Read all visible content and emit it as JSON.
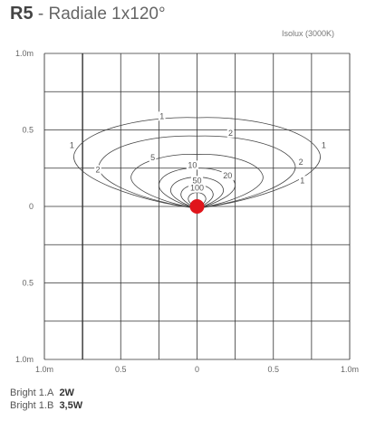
{
  "header": {
    "code": "R5",
    "separator": " - ",
    "name": "Radiale 1x120°",
    "subtitle": "Isolux (3000K)"
  },
  "legend": {
    "items": [
      {
        "label": "Bright 1.A",
        "value": "2W"
      },
      {
        "label": "Bright 1.B",
        "value": "3,5W"
      }
    ]
  },
  "chart_data": {
    "type": "isolux-contour",
    "grid": true,
    "xlim": [
      -1.0,
      1.0
    ],
    "ylim": [
      -1.0,
      1.0
    ],
    "x_ticks": [
      {
        "v": -1.0,
        "label": "1.0m"
      },
      {
        "v": -0.5,
        "label": "0.5"
      },
      {
        "v": 0.0,
        "label": "0"
      },
      {
        "v": 0.5,
        "label": "0.5"
      },
      {
        "v": 1.0,
        "label": "1.0m"
      }
    ],
    "y_ticks": [
      {
        "v": 1.0,
        "label": "1.0m"
      },
      {
        "v": 0.5,
        "label": "0.5"
      },
      {
        "v": 0.0,
        "label": "0"
      },
      {
        "v": -0.5,
        "label": "0.5"
      },
      {
        "v": -1.0,
        "label": "1.0m"
      }
    ],
    "source": {
      "x": 0.0,
      "y": 0.0,
      "color": "#e0151b"
    },
    "contours": [
      {
        "value": "1",
        "half_width": 0.84,
        "reach": 0.58
      },
      {
        "value": "2",
        "half_width": 0.67,
        "reach": 0.46
      },
      {
        "value": "5",
        "half_width": 0.45,
        "reach": 0.34
      },
      {
        "value": "10",
        "half_width": 0.26,
        "reach": 0.25
      },
      {
        "value": "20",
        "half_width": 0.18,
        "reach": 0.19
      },
      {
        "value": "50",
        "half_width": 0.11,
        "reach": 0.14
      },
      {
        "value": "100",
        "half_width": 0.06,
        "reach": 0.09
      }
    ],
    "labels": [
      {
        "text": "1",
        "x": -0.23,
        "y": 0.59
      },
      {
        "text": "2",
        "x": 0.22,
        "y": 0.48
      },
      {
        "text": "1",
        "x": -0.82,
        "y": 0.4
      },
      {
        "text": "1",
        "x": 0.83,
        "y": 0.4
      },
      {
        "text": "5",
        "x": -0.29,
        "y": 0.32
      },
      {
        "text": "2",
        "x": -0.65,
        "y": 0.24
      },
      {
        "text": "2",
        "x": 0.68,
        "y": 0.29
      },
      {
        "text": "10",
        "x": -0.03,
        "y": 0.27
      },
      {
        "text": "20",
        "x": 0.2,
        "y": 0.2
      },
      {
        "text": "50",
        "x": 0.0,
        "y": 0.17
      },
      {
        "text": "1",
        "x": 0.69,
        "y": 0.17
      },
      {
        "text": "100",
        "x": 0.0,
        "y": 0.12
      }
    ]
  }
}
